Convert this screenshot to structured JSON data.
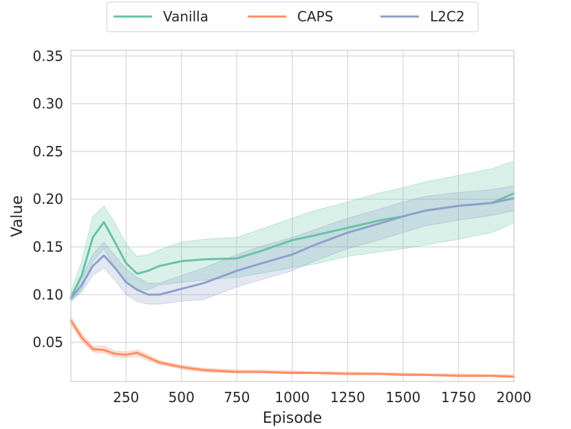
{
  "chart_data": {
    "type": "line",
    "title": "",
    "xlabel": "Episode",
    "ylabel": "Value",
    "xlim": [
      1,
      2000
    ],
    "ylim": [
      0.009,
      0.356
    ],
    "xticks": [
      250,
      500,
      750,
      1000,
      1250,
      1500,
      1750,
      2000
    ],
    "xtick_labels": [
      "250",
      "500",
      "750",
      "1000",
      "1250",
      "1500",
      "1750",
      "2000"
    ],
    "yticks": [
      0.05,
      0.1,
      0.15,
      0.2,
      0.25,
      0.3,
      0.35
    ],
    "ytick_labels": [
      "0.05",
      "0.10",
      "0.15",
      "0.20",
      "0.25",
      "0.30",
      "0.35"
    ],
    "grid": true,
    "legend_position": "top-center",
    "x": [
      1,
      50,
      100,
      150,
      200,
      250,
      300,
      350,
      400,
      500,
      600,
      750,
      850,
      1000,
      1100,
      1250,
      1400,
      1500,
      1600,
      1750,
      1900,
      2000
    ],
    "series": [
      {
        "name": "Vanilla",
        "color": "#66c2a5",
        "values": [
          0.097,
          0.12,
          0.16,
          0.176,
          0.155,
          0.133,
          0.122,
          0.125,
          0.13,
          0.135,
          0.137,
          0.138,
          0.145,
          0.157,
          0.162,
          0.17,
          0.178,
          0.182,
          0.188,
          0.193,
          0.196,
          0.206
        ],
        "lower": [
          0.093,
          0.105,
          0.135,
          0.148,
          0.128,
          0.112,
          0.105,
          0.105,
          0.11,
          0.113,
          0.115,
          0.118,
          0.122,
          0.128,
          0.132,
          0.14,
          0.145,
          0.148,
          0.152,
          0.158,
          0.165,
          0.175
        ],
        "upper": [
          0.103,
          0.135,
          0.182,
          0.193,
          0.175,
          0.153,
          0.14,
          0.142,
          0.147,
          0.155,
          0.158,
          0.16,
          0.168,
          0.18,
          0.188,
          0.197,
          0.207,
          0.212,
          0.218,
          0.225,
          0.232,
          0.24
        ]
      },
      {
        "name": "CAPS",
        "color": "#fc8d62",
        "values": [
          0.073,
          0.055,
          0.043,
          0.042,
          0.038,
          0.037,
          0.039,
          0.034,
          0.029,
          0.024,
          0.021,
          0.019,
          0.019,
          0.018,
          0.018,
          0.017,
          0.017,
          0.016,
          0.016,
          0.015,
          0.015,
          0.014
        ],
        "lower": [
          0.069,
          0.051,
          0.04,
          0.039,
          0.035,
          0.034,
          0.036,
          0.031,
          0.027,
          0.022,
          0.019,
          0.018,
          0.018,
          0.017,
          0.017,
          0.016,
          0.016,
          0.015,
          0.015,
          0.014,
          0.014,
          0.013
        ],
        "upper": [
          0.077,
          0.059,
          0.046,
          0.046,
          0.041,
          0.04,
          0.042,
          0.037,
          0.031,
          0.026,
          0.023,
          0.021,
          0.021,
          0.02,
          0.019,
          0.019,
          0.018,
          0.018,
          0.017,
          0.017,
          0.016,
          0.016
        ]
      },
      {
        "name": "L2C2",
        "color": "#8da0cb",
        "values": [
          0.096,
          0.11,
          0.13,
          0.141,
          0.128,
          0.113,
          0.105,
          0.1,
          0.1,
          0.106,
          0.112,
          0.125,
          0.132,
          0.142,
          0.152,
          0.165,
          0.175,
          0.182,
          0.188,
          0.193,
          0.196,
          0.201
        ],
        "lower": [
          0.093,
          0.103,
          0.12,
          0.128,
          0.115,
          0.1,
          0.093,
          0.09,
          0.09,
          0.093,
          0.095,
          0.108,
          0.115,
          0.125,
          0.135,
          0.148,
          0.158,
          0.165,
          0.172,
          0.178,
          0.183,
          0.188
        ],
        "upper": [
          0.1,
          0.118,
          0.142,
          0.155,
          0.141,
          0.127,
          0.118,
          0.112,
          0.112,
          0.12,
          0.128,
          0.142,
          0.15,
          0.16,
          0.168,
          0.18,
          0.19,
          0.197,
          0.203,
          0.207,
          0.21,
          0.214
        ]
      }
    ]
  }
}
